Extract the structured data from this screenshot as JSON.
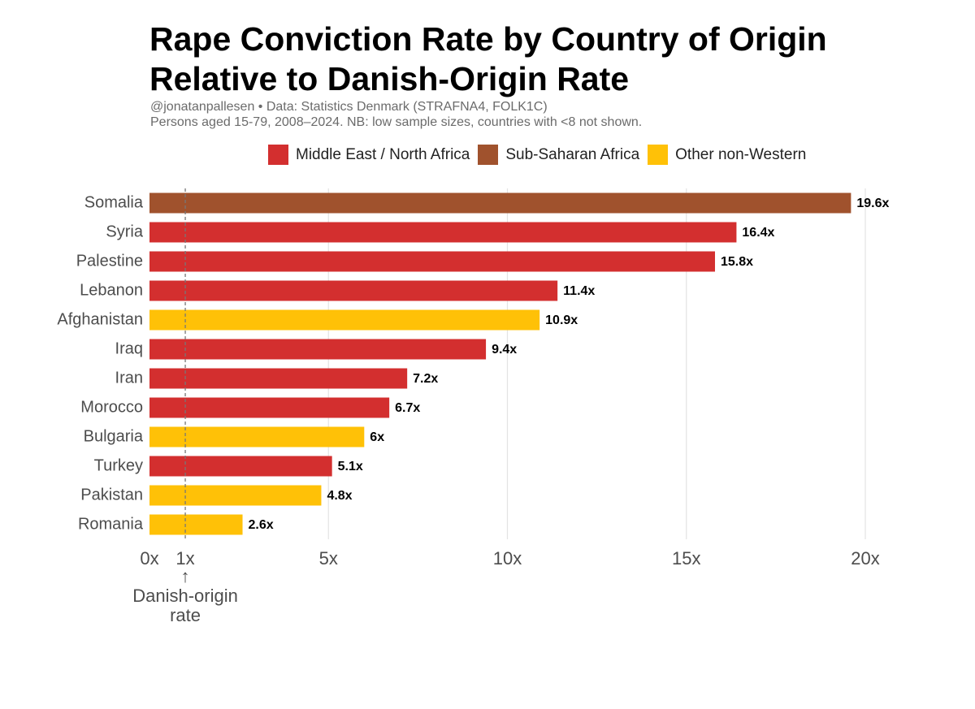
{
  "title_lines": [
    "Rape Conviction Rate by Country of Origin",
    "Relative to Danish-Origin Rate"
  ],
  "subtitle_lines": [
    "@jonatanpallesen • Data: Statistics Denmark (STRAFNA4, FOLK1C)",
    "Persons aged 15-79, 2008–2024. NB: low sample sizes, countries with <8 not shown."
  ],
  "legend": [
    {
      "label": "Middle East / North Africa",
      "color": "#d32f2f"
    },
    {
      "label": "Sub-Saharan Africa",
      "color": "#a0522d"
    },
    {
      "label": "Other non-Western",
      "color": "#ffc107"
    }
  ],
  "chart_data": {
    "type": "bar",
    "orientation": "horizontal",
    "categories": [
      "Somalia",
      "Syria",
      "Palestine",
      "Lebanon",
      "Afghanistan",
      "Iraq",
      "Iran",
      "Morocco",
      "Bulgaria",
      "Turkey",
      "Pakistan",
      "Romania"
    ],
    "values": [
      19.6,
      16.4,
      15.8,
      11.4,
      10.9,
      9.4,
      7.2,
      6.7,
      6,
      5.1,
      4.8,
      2.6
    ],
    "value_labels": [
      "19.6x",
      "16.4x",
      "15.8x",
      "11.4x",
      "10.9x",
      "9.4x",
      "7.2x",
      "6.7x",
      "6x",
      "5.1x",
      "4.8x",
      "2.6x"
    ],
    "groups": [
      "Sub-Saharan Africa",
      "Middle East / North Africa",
      "Middle East / North Africa",
      "Middle East / North Africa",
      "Other non-Western",
      "Middle East / North Africa",
      "Middle East / North Africa",
      "Middle East / North Africa",
      "Other non-Western",
      "Middle East / North Africa",
      "Other non-Western",
      "Other non-Western"
    ],
    "xlim": [
      0,
      20
    ],
    "xticks": [
      0,
      1,
      5,
      10,
      15,
      20
    ],
    "xtick_labels": [
      "0x",
      "1x",
      "5x",
      "10x",
      "15x",
      "20x"
    ],
    "gridlines": [
      5,
      10,
      15,
      20
    ],
    "grid": true,
    "legend_position": "top",
    "reference_line": {
      "value": 1,
      "style": "dashed",
      "label_lines": [
        "Danish-origin",
        "rate"
      ],
      "arrow": "↑"
    }
  }
}
